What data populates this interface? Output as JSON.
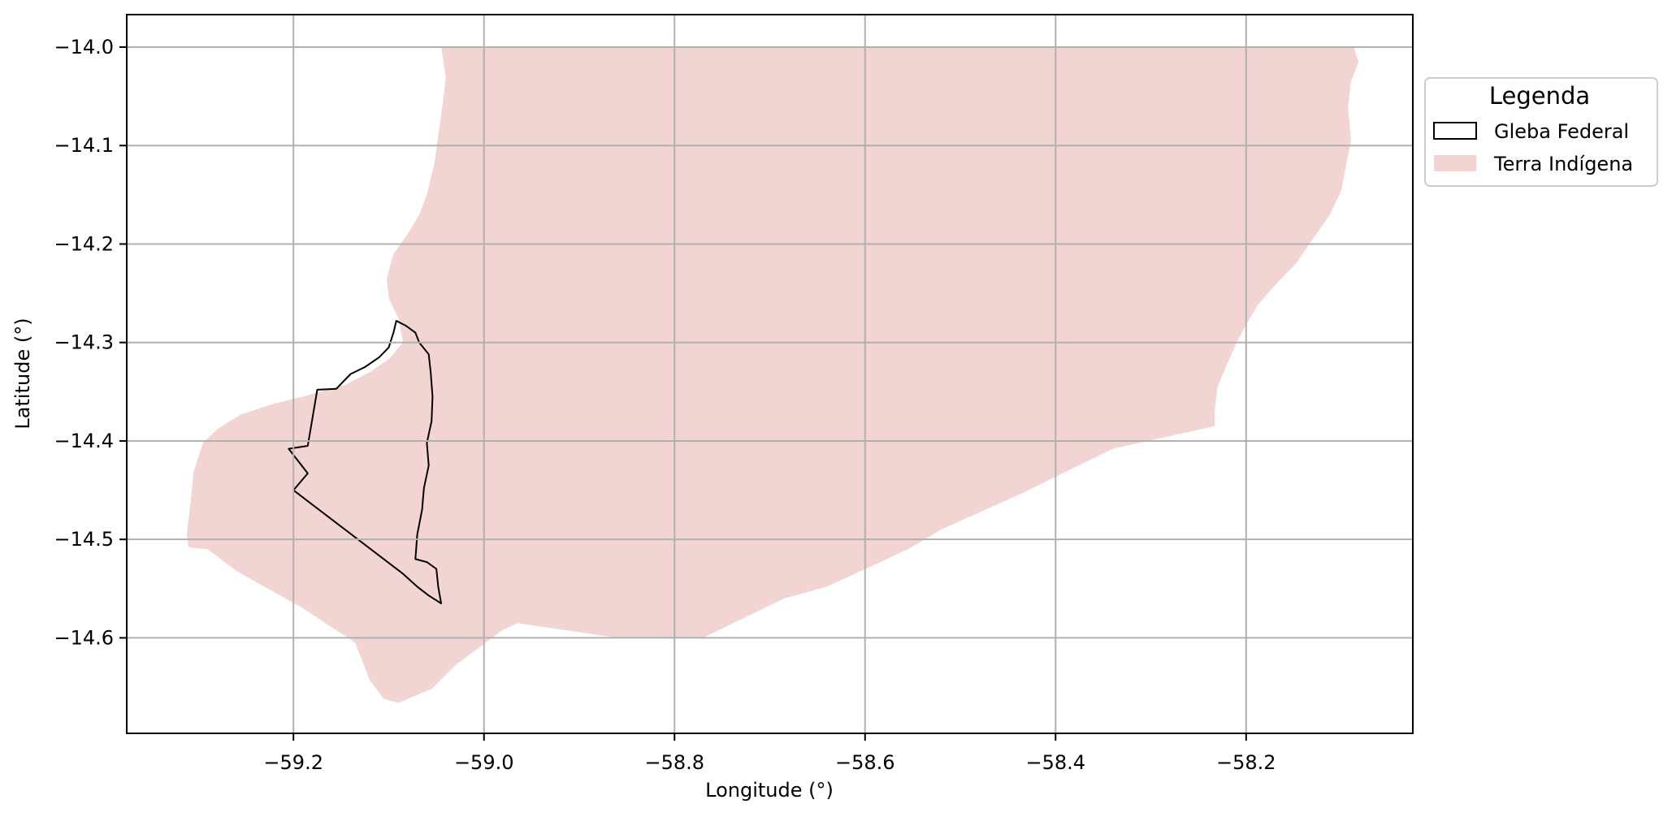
{
  "chart_data": {
    "type": "map",
    "xlabel": "Longitude (°)",
    "ylabel": "Latitude (°)",
    "xlim": [
      -59.375,
      -58.025
    ],
    "ylim": [
      -14.697,
      -13.967
    ],
    "grid": true,
    "xticks": [
      -59.2,
      -59.0,
      -58.8,
      -58.6,
      -58.4,
      -58.2
    ],
    "yticks": [
      -14.0,
      -14.1,
      -14.2,
      -14.3,
      -14.4,
      -14.5,
      -14.6
    ],
    "xtick_labels": [
      "−59.2",
      "−59.0",
      "−58.8",
      "−58.6",
      "−58.4",
      "−58.2"
    ],
    "ytick_labels": [
      "−14.0",
      "−14.1",
      "−14.2",
      "−14.3",
      "−14.4",
      "−14.5",
      "−14.6"
    ],
    "legend": {
      "title": "Legenda",
      "placement": "upper-right-outside",
      "entries": [
        {
          "label": "Gleba Federal",
          "style": "outline",
          "color": "#000000"
        },
        {
          "label": "Terra Indígena",
          "style": "fill",
          "color": "#f2d4d2"
        }
      ]
    },
    "layers": [
      {
        "name": "Terra Indígena",
        "fill": "#f2d4d2",
        "polygon": [
          [
            -59.045,
            -14.0
          ],
          [
            -58.087,
            -14.0
          ],
          [
            -58.082,
            -14.015
          ],
          [
            -58.09,
            -14.035
          ],
          [
            -58.093,
            -14.06
          ],
          [
            -58.09,
            -14.095
          ],
          [
            -58.095,
            -14.12
          ],
          [
            -58.1,
            -14.145
          ],
          [
            -58.112,
            -14.17
          ],
          [
            -58.13,
            -14.195
          ],
          [
            -58.148,
            -14.22
          ],
          [
            -58.168,
            -14.24
          ],
          [
            -58.188,
            -14.262
          ],
          [
            -58.2,
            -14.282
          ],
          [
            -58.21,
            -14.3
          ],
          [
            -58.22,
            -14.322
          ],
          [
            -58.23,
            -14.345
          ],
          [
            -58.233,
            -14.37
          ],
          [
            -58.233,
            -14.385
          ],
          [
            -58.34,
            -14.408
          ],
          [
            -58.435,
            -14.453
          ],
          [
            -58.52,
            -14.49
          ],
          [
            -58.555,
            -14.51
          ],
          [
            -58.64,
            -14.548
          ],
          [
            -58.685,
            -14.56
          ],
          [
            -58.77,
            -14.6
          ],
          [
            -58.86,
            -14.6
          ],
          [
            -58.965,
            -14.585
          ],
          [
            -58.982,
            -14.593
          ],
          [
            -59.03,
            -14.628
          ],
          [
            -59.055,
            -14.652
          ],
          [
            -59.09,
            -14.666
          ],
          [
            -59.105,
            -14.662
          ],
          [
            -59.12,
            -14.643
          ],
          [
            -59.135,
            -14.605
          ],
          [
            -59.19,
            -14.57
          ],
          [
            -59.26,
            -14.532
          ],
          [
            -59.29,
            -14.51
          ],
          [
            -59.31,
            -14.508
          ],
          [
            -59.312,
            -14.495
          ],
          [
            -59.308,
            -14.462
          ],
          [
            -59.305,
            -14.432
          ],
          [
            -59.295,
            -14.402
          ],
          [
            -59.28,
            -14.388
          ],
          [
            -59.255,
            -14.373
          ],
          [
            -59.22,
            -14.362
          ],
          [
            -59.19,
            -14.355
          ],
          [
            -59.165,
            -14.348
          ],
          [
            -59.145,
            -14.343
          ],
          [
            -59.12,
            -14.33
          ],
          [
            -59.1,
            -14.317
          ],
          [
            -59.085,
            -14.3
          ],
          [
            -59.09,
            -14.275
          ],
          [
            -59.1,
            -14.255
          ],
          [
            -59.102,
            -14.235
          ],
          [
            -59.095,
            -14.21
          ],
          [
            -59.08,
            -14.19
          ],
          [
            -59.068,
            -14.17
          ],
          [
            -59.06,
            -14.15
          ],
          [
            -59.052,
            -14.118
          ],
          [
            -59.048,
            -14.09
          ],
          [
            -59.043,
            -14.055
          ],
          [
            -59.04,
            -14.03
          ],
          [
            -59.045,
            -14.0
          ]
        ]
      },
      {
        "name": "Gleba Federal",
        "stroke": "#000000",
        "polygon": [
          [
            -59.092,
            -14.278
          ],
          [
            -59.082,
            -14.283
          ],
          [
            -59.072,
            -14.29
          ],
          [
            -59.068,
            -14.3
          ],
          [
            -59.058,
            -14.312
          ],
          [
            -59.056,
            -14.33
          ],
          [
            -59.054,
            -14.355
          ],
          [
            -59.055,
            -14.38
          ],
          [
            -59.06,
            -14.402
          ],
          [
            -59.058,
            -14.425
          ],
          [
            -59.063,
            -14.448
          ],
          [
            -59.065,
            -14.47
          ],
          [
            -59.07,
            -14.495
          ],
          [
            -59.072,
            -14.52
          ],
          [
            -59.06,
            -14.523
          ],
          [
            -59.05,
            -14.53
          ],
          [
            -59.048,
            -14.548
          ],
          [
            -59.045,
            -14.565
          ],
          [
            -59.058,
            -14.557
          ],
          [
            -59.07,
            -14.548
          ],
          [
            -59.085,
            -14.535
          ],
          [
            -59.2,
            -14.45
          ],
          [
            -59.185,
            -14.433
          ],
          [
            -59.205,
            -14.408
          ],
          [
            -59.185,
            -14.405
          ],
          [
            -59.175,
            -14.348
          ],
          [
            -59.155,
            -14.347
          ],
          [
            -59.14,
            -14.332
          ],
          [
            -59.125,
            -14.325
          ],
          [
            -59.11,
            -14.315
          ],
          [
            -59.1,
            -14.305
          ],
          [
            -59.095,
            -14.29
          ],
          [
            -59.092,
            -14.278
          ]
        ]
      }
    ]
  }
}
